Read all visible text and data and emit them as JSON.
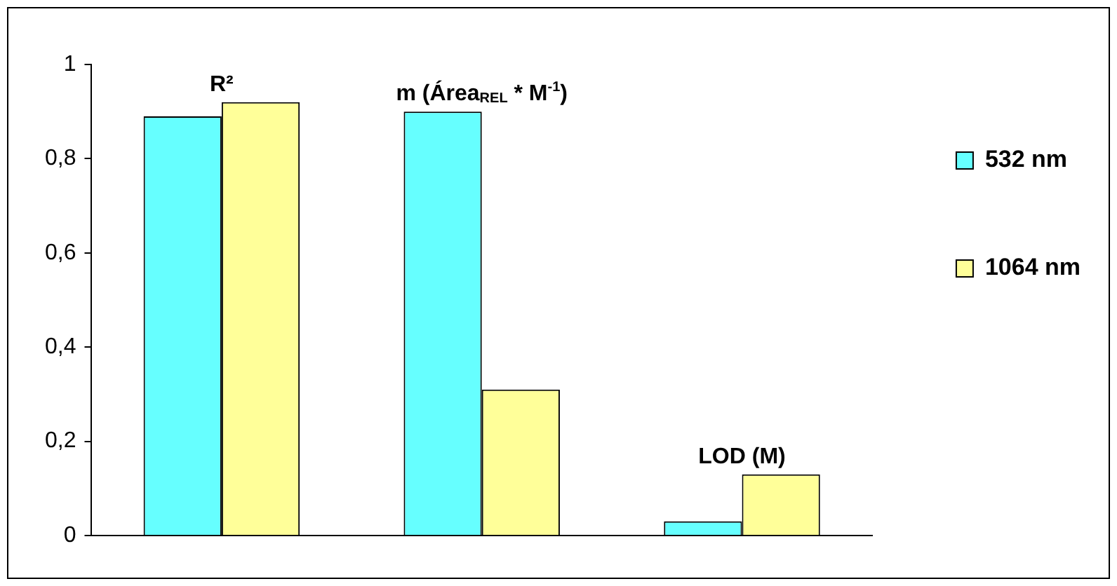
{
  "chart_data": {
    "type": "bar",
    "categories": [
      "R²",
      "m (Área$_{REL}$ * M$^{-1}$)",
      "LOD (M)"
    ],
    "series": [
      {
        "name": "532 nm",
        "color": "#66ffff",
        "values": [
          0.89,
          0.9,
          0.03
        ]
      },
      {
        "name": "1064 nm",
        "color": "#ffff99",
        "values": [
          0.92,
          0.31,
          0.13
        ]
      }
    ],
    "ylim": [
      0,
      1
    ],
    "yticks": [
      0,
      {
        "value": 0.2,
        "label": "0,2"
      },
      {
        "value": 0.4,
        "label": "0,4"
      },
      {
        "value": 0.6,
        "label": "0,6"
      },
      {
        "value": 0.8,
        "label": "0,8"
      },
      1
    ],
    "grid": false,
    "legend": "right"
  }
}
